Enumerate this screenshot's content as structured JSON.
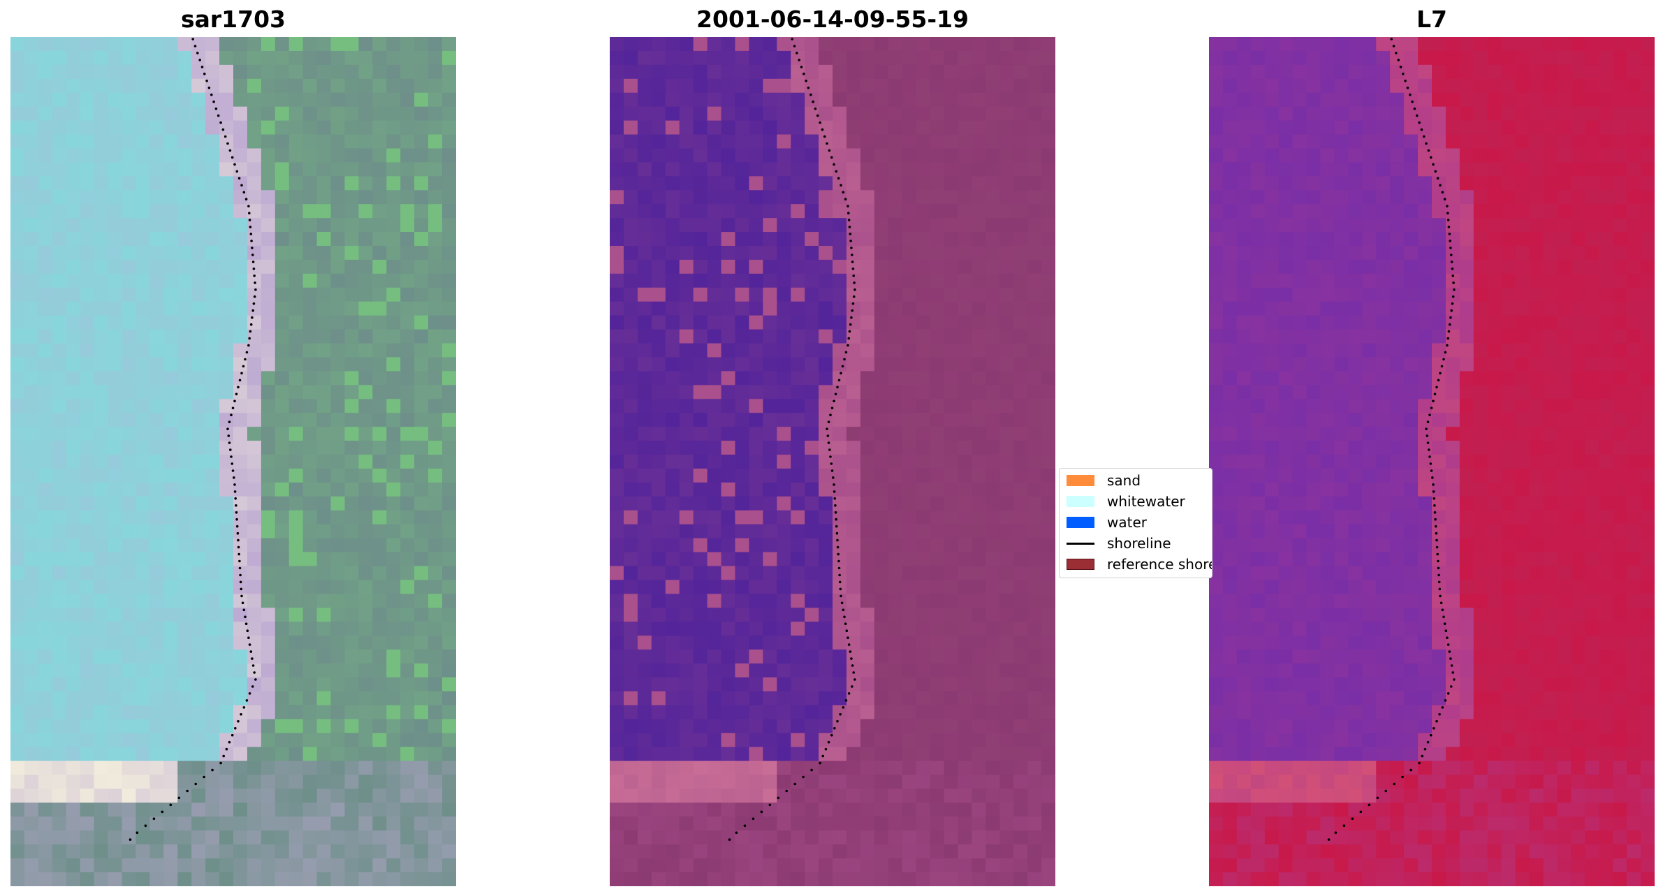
{
  "panels": [
    {
      "title": "sar1703",
      "palette": "sar"
    },
    {
      "title": "2001-06-14-09-55-19",
      "palette": "class"
    },
    {
      "title": "L7",
      "palette": "l7"
    }
  ],
  "legend": {
    "items": [
      {
        "label": "sand",
        "color": "#ff8c3a",
        "kind": "patch"
      },
      {
        "label": "whitewater",
        "color": "#ccffff",
        "kind": "patch"
      },
      {
        "label": "water",
        "color": "#005dff",
        "kind": "patch"
      },
      {
        "label": "shoreline",
        "color": "#000000",
        "kind": "line"
      },
      {
        "label": "reference shoreline",
        "color": "#9b2d35",
        "kind": "patch"
      }
    ]
  },
  "colors": {
    "water_class": "#53249a",
    "land_class": "#8c3a72",
    "l7_water": "#7a2fa6",
    "l7_land": "#c8194a",
    "sar_water": "#88d6dc",
    "sar_land": "#6e8f8a"
  }
}
